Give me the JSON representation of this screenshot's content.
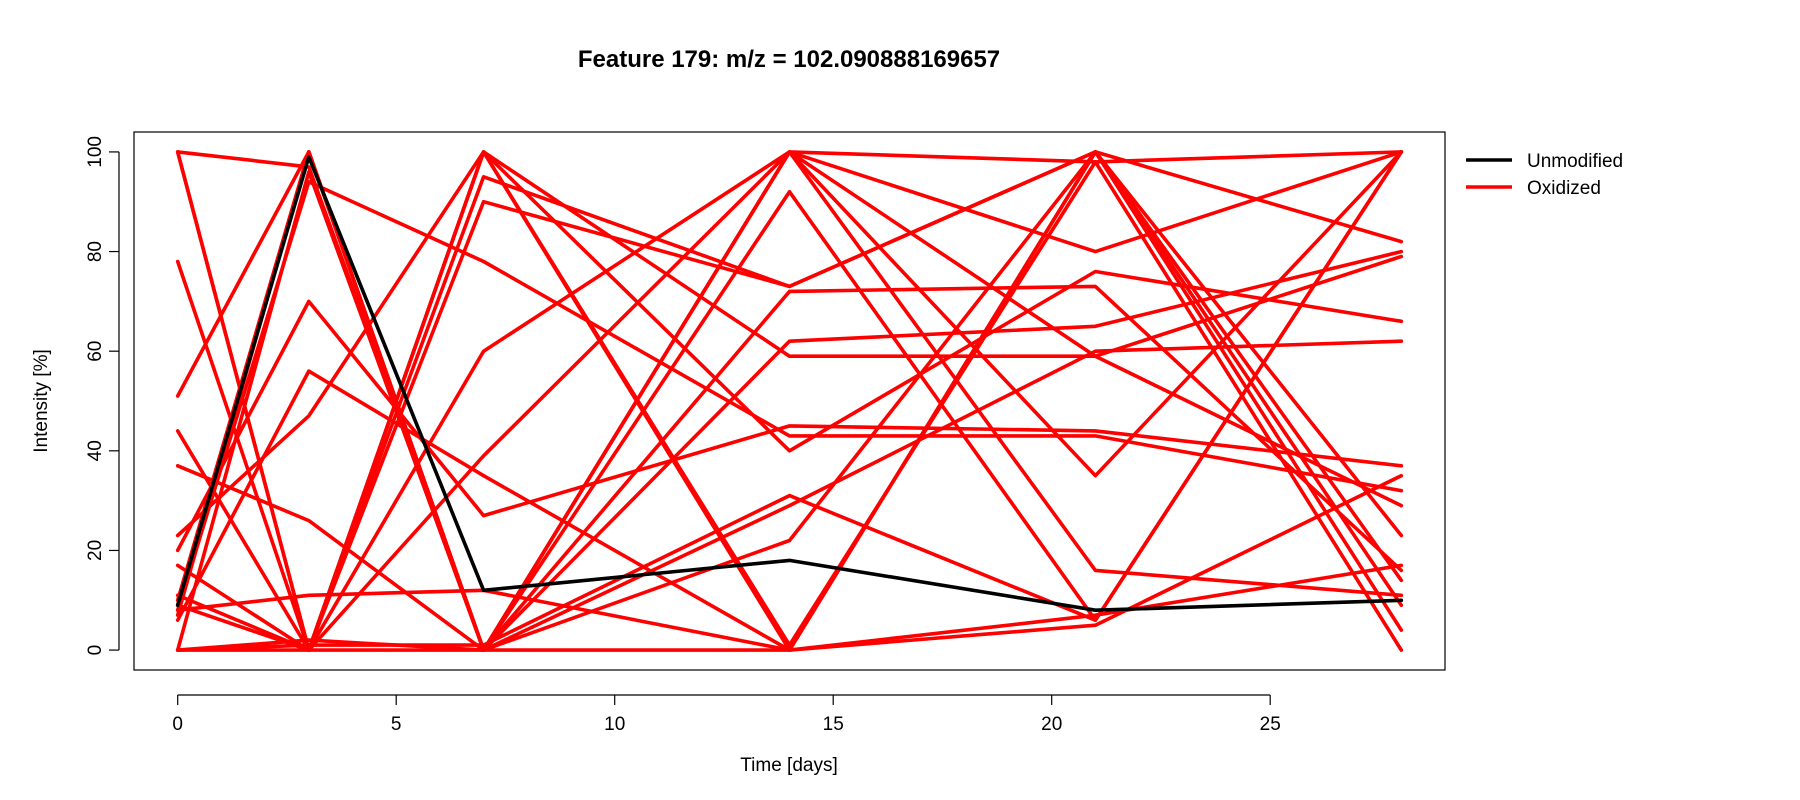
{
  "chart_data": {
    "type": "line",
    "title": "Feature 179: m/z = 102.090888169657",
    "xlabel": "Time [days]",
    "ylabel": "Intensity [%]",
    "x": [
      0,
      3,
      7,
      14,
      21,
      28
    ],
    "xlim": [
      -1,
      29
    ],
    "ylim": [
      -4,
      104
    ],
    "xticks": [
      "0",
      "5",
      "10",
      "15",
      "20",
      "25"
    ],
    "yticks": [
      "0",
      "20",
      "40",
      "60",
      "80",
      "100"
    ],
    "grid": false,
    "legend_position": "top-right (outside plot)",
    "legend": [
      {
        "label": "Unmodified",
        "color": "#000000"
      },
      {
        "label": "Oxidized",
        "color": "#ff0000"
      }
    ],
    "series": [
      {
        "group": "Unmodified",
        "color": "#000000",
        "values": [
          9,
          99,
          12,
          18,
          8,
          10
        ]
      },
      {
        "group": "Oxidized",
        "color": "#ff0000",
        "values": [
          100,
          97,
          0,
          100,
          98,
          100
        ]
      },
      {
        "group": "Oxidized",
        "color": "#ff0000",
        "values": [
          100,
          0,
          95,
          73,
          100,
          82
        ]
      },
      {
        "group": "Oxidized",
        "color": "#ff0000",
        "values": [
          7,
          100,
          0,
          92,
          6,
          100
        ]
      },
      {
        "group": "Oxidized",
        "color": "#ff0000",
        "values": [
          9,
          100,
          0,
          72,
          73,
          16
        ]
      },
      {
        "group": "Oxidized",
        "color": "#ff0000",
        "values": [
          0,
          96,
          0,
          100,
          80,
          100
        ]
      },
      {
        "group": "Oxidized",
        "color": "#ff0000",
        "values": [
          78,
          0,
          100,
          59,
          59,
          29
        ]
      },
      {
        "group": "Oxidized",
        "color": "#ff0000",
        "values": [
          51,
          100,
          0,
          100,
          59,
          79
        ]
      },
      {
        "group": "Oxidized",
        "color": "#ff0000",
        "values": [
          44,
          0,
          90,
          73,
          100,
          14
        ]
      },
      {
        "group": "Oxidized",
        "color": "#ff0000",
        "values": [
          37,
          26,
          0,
          62,
          65,
          80
        ]
      },
      {
        "group": "Oxidized",
        "color": "#ff0000",
        "values": [
          23,
          47,
          100,
          40,
          76,
          66
        ]
      },
      {
        "group": "Oxidized",
        "color": "#ff0000",
        "values": [
          20,
          70,
          27,
          45,
          44,
          37
        ]
      },
      {
        "group": "Oxidized",
        "color": "#ff0000",
        "values": [
          17,
          0,
          60,
          100,
          35,
          100
        ]
      },
      {
        "group": "Oxidized",
        "color": "#ff0000",
        "values": [
          10,
          100,
          0,
          29,
          60,
          62
        ]
      },
      {
        "group": "Oxidized",
        "color": "#ff0000",
        "values": [
          8,
          94,
          78,
          43,
          43,
          32
        ]
      },
      {
        "group": "Oxidized",
        "color": "#ff0000",
        "values": [
          6,
          56,
          35,
          0,
          100,
          9
        ]
      },
      {
        "group": "Oxidized",
        "color": "#ff0000",
        "values": [
          8,
          11,
          12,
          0,
          100,
          4
        ]
      },
      {
        "group": "Oxidized",
        "color": "#ff0000",
        "values": [
          0,
          2,
          0,
          22,
          100,
          23
        ]
      },
      {
        "group": "Oxidized",
        "color": "#ff0000",
        "values": [
          11,
          0,
          100,
          0,
          5,
          35
        ]
      },
      {
        "group": "Oxidized",
        "color": "#ff0000",
        "values": [
          0,
          0,
          39,
          100,
          16,
          11
        ]
      },
      {
        "group": "Oxidized",
        "color": "#ff0000",
        "values": [
          0,
          1,
          1,
          31,
          6,
          100
        ]
      },
      {
        "group": "Oxidized",
        "color": "#ff0000",
        "values": [
          9,
          0,
          0,
          0,
          7,
          17
        ]
      },
      {
        "group": "Oxidized",
        "color": "#ff0000",
        "values": [
          100,
          0,
          100,
          1,
          98,
          0
        ]
      }
    ]
  }
}
